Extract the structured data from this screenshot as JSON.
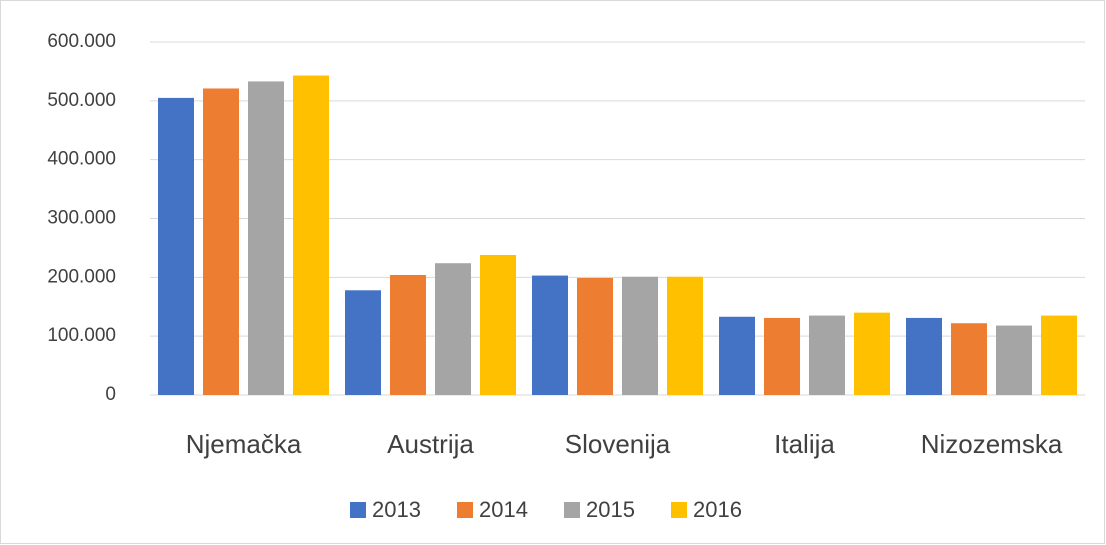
{
  "chart_data": {
    "type": "bar",
    "categories": [
      "Njemačka",
      "Austrija",
      "Slovenija",
      "Italija",
      "Nizozemska"
    ],
    "series": [
      {
        "name": "2013",
        "color": "#4472c4",
        "values": [
          505000,
          178000,
          203000,
          133000,
          131000
        ]
      },
      {
        "name": "2014",
        "color": "#ed7d31",
        "values": [
          521000,
          204000,
          199000,
          131000,
          122000
        ]
      },
      {
        "name": "2015",
        "color": "#a5a5a5",
        "values": [
          533000,
          224000,
          201000,
          135000,
          118000
        ]
      },
      {
        "name": "2016",
        "color": "#ffc000",
        "values": [
          543000,
          238000,
          201000,
          140000,
          135000
        ]
      }
    ],
    "ylim": [
      0,
      600000
    ],
    "yticks": [
      0,
      {
        "value": 100000,
        "label": "100.000"
      },
      {
        "value": 200000,
        "label": "200.000"
      },
      {
        "value": 300000,
        "label": "300.000"
      },
      {
        "value": 400000,
        "label": "400.000"
      },
      {
        "value": 500000,
        "label": "500.000"
      },
      {
        "value": 600000,
        "label": "600.000"
      }
    ],
    "grid": true,
    "legend": "bottom"
  }
}
